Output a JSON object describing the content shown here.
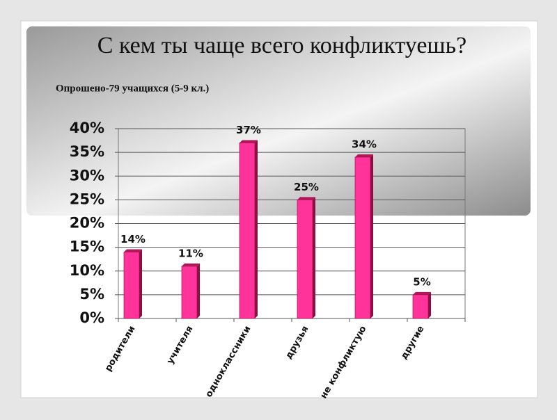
{
  "chart_data": {
    "type": "bar",
    "title": "С кем ты чаще всего конфликтуешь?",
    "subtitle": "Опрошено-79 учащихся (5-9 кл.)",
    "categories": [
      "родители",
      "учителя",
      "одноклассники",
      "друзья",
      "не конфликтую",
      "другие"
    ],
    "values": [
      14,
      11,
      37,
      25,
      34,
      5
    ],
    "value_labels": [
      "14%",
      "11%",
      "37%",
      "25%",
      "34%",
      "5%"
    ],
    "color": "#ff3399",
    "ylim": [
      0,
      40
    ],
    "yticks": [
      {
        "value": 0,
        "label": "0%"
      },
      {
        "value": 5,
        "label": "5%"
      },
      {
        "value": 10,
        "label": "10%"
      },
      {
        "value": 15,
        "label": "15%"
      },
      {
        "value": 20,
        "label": "20%"
      },
      {
        "value": 25,
        "label": "25%"
      },
      {
        "value": 30,
        "label": "30%"
      },
      {
        "value": 35,
        "label": "35%"
      },
      {
        "value": 40,
        "label": "40%"
      }
    ],
    "grid": true
  }
}
